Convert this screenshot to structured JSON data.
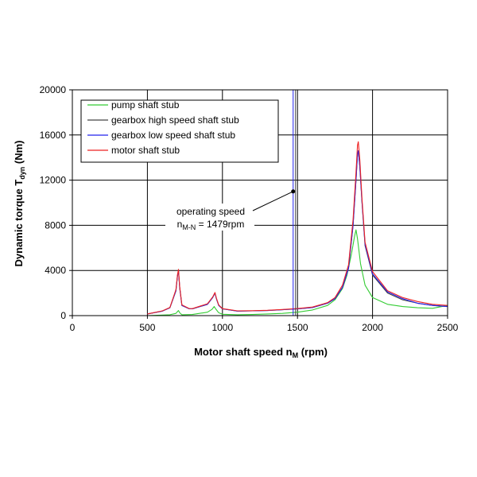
{
  "chart_data": {
    "type": "line",
    "xlabel": "Motor shaft speed n",
    "xlabel_sub": "M",
    "xlabel_unit": " (rpm)",
    "ylabel": "Dynamic torque T",
    "ylabel_sub": "dyn",
    "ylabel_unit": " (Nm)",
    "xlim": [
      0,
      2500
    ],
    "ylim": [
      0,
      20000
    ],
    "xticks": [
      "0",
      "500",
      "1000",
      "1500",
      "2000",
      "2500"
    ],
    "yticks": [
      "0",
      "4000",
      "8000",
      "12000",
      "16000",
      "20000"
    ],
    "grid": true,
    "legend_position": "top-left",
    "colors": {
      "pump": "#33cc33",
      "gearbox_high": "#444444",
      "gearbox_low": "#2222ee",
      "motor": "#ee2222"
    },
    "series": [
      {
        "name": "pump shaft stub",
        "color": "#33cc33",
        "x": [
          500,
          600,
          650,
          690,
          700,
          707,
          715,
          730,
          800,
          900,
          930,
          945,
          955,
          975,
          1000,
          1100,
          1200,
          1300,
          1400,
          1500,
          1600,
          1700,
          1750,
          1800,
          1830,
          1860,
          1880,
          1890,
          1900,
          1920,
          1950,
          2000,
          2100,
          2200,
          2300,
          2400,
          2500
        ],
        "y": [
          0,
          50,
          80,
          200,
          350,
          450,
          250,
          80,
          100,
          300,
          550,
          800,
          600,
          250,
          120,
          80,
          100,
          150,
          200,
          300,
          500,
          900,
          1400,
          2400,
          3600,
          5500,
          7000,
          7600,
          6800,
          4600,
          2700,
          1600,
          1000,
          800,
          700,
          650,
          900
        ]
      },
      {
        "name": "gearbox high speed shaft stub",
        "color": "#444444",
        "x": [
          500,
          600,
          650,
          690,
          700,
          707,
          715,
          730,
          780,
          800,
          900,
          935,
          950,
          960,
          975,
          1000,
          1100,
          1200,
          1300,
          1400,
          1500,
          1600,
          1700,
          1750,
          1800,
          1840,
          1870,
          1890,
          1900,
          1905,
          1915,
          1930,
          1950,
          2000,
          2100,
          2200,
          2300,
          2400,
          2500
        ],
        "y": [
          150,
          400,
          700,
          2200,
          3500,
          4000,
          2500,
          900,
          600,
          600,
          1000,
          1600,
          2000,
          1500,
          900,
          600,
          400,
          420,
          450,
          520,
          600,
          720,
          1100,
          1500,
          2500,
          4200,
          8000,
          12000,
          14300,
          14600,
          13200,
          10000,
          6200,
          3600,
          2000,
          1400,
          1100,
          900,
          800
        ]
      },
      {
        "name": "gearbox low speed shaft stub",
        "color": "#2222ee",
        "x": [
          500,
          600,
          650,
          690,
          700,
          707,
          715,
          730,
          780,
          800,
          900,
          935,
          950,
          960,
          975,
          1000,
          1100,
          1200,
          1300,
          1400,
          1500,
          1600,
          1700,
          1750,
          1800,
          1840,
          1870,
          1890,
          1900,
          1905,
          1915,
          1930,
          1950,
          2000,
          2100,
          2200,
          2300,
          2400,
          2500
        ],
        "y": [
          150,
          400,
          700,
          2200,
          3500,
          4000,
          2500,
          900,
          600,
          600,
          1000,
          1600,
          2000,
          1500,
          900,
          600,
          400,
          420,
          450,
          520,
          600,
          720,
          1100,
          1500,
          2500,
          4200,
          8000,
          12000,
          14300,
          14600,
          13200,
          10000,
          6300,
          3700,
          2100,
          1500,
          1100,
          900,
          800
        ]
      },
      {
        "name": "motor shaft stub",
        "color": "#ee2222",
        "x": [
          500,
          600,
          650,
          690,
          700,
          707,
          715,
          730,
          780,
          800,
          900,
          935,
          950,
          960,
          975,
          1000,
          1100,
          1200,
          1300,
          1400,
          1500,
          1600,
          1700,
          1750,
          1800,
          1840,
          1870,
          1890,
          1900,
          1905,
          1915,
          1930,
          1950,
          2000,
          2100,
          2200,
          2300,
          2400,
          2500
        ],
        "y": [
          150,
          420,
          720,
          2300,
          3600,
          4100,
          2600,
          950,
          620,
          620,
          1050,
          1650,
          2050,
          1550,
          950,
          620,
          420,
          440,
          470,
          540,
          630,
          760,
          1150,
          1600,
          2700,
          4500,
          8500,
          12700,
          15100,
          15400,
          13800,
          10300,
          6500,
          3900,
          2200,
          1600,
          1250,
          1000,
          900
        ]
      }
    ],
    "operating_speed": {
      "label": "operating speed",
      "formula_prefix": "n",
      "formula_sub": "M-N",
      "formula_suffix": " = 1479rpm",
      "value": 1479,
      "marker_y": 11000,
      "line_colors": [
        "#2222ee",
        "#444444"
      ]
    }
  }
}
